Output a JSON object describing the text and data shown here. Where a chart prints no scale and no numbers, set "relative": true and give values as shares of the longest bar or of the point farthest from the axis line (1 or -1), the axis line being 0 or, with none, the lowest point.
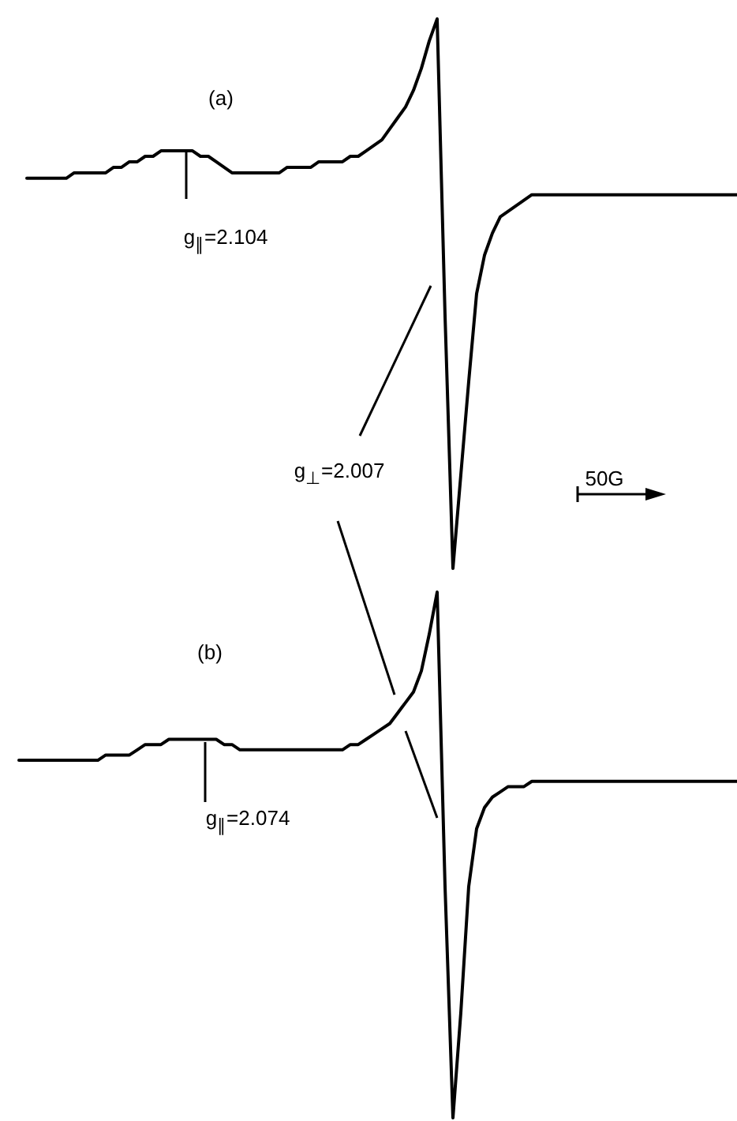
{
  "chart_data": [
    {
      "type": "line",
      "relative": true,
      "line_style": "solid",
      "grid": false,
      "tick_labels": false,
      "categories": [
        null,
        null,
        null,
        null,
        null,
        null,
        null,
        null,
        null,
        null,
        null,
        null,
        null,
        null,
        null,
        null,
        null,
        null,
        null,
        null,
        null,
        null,
        null,
        null,
        null,
        null,
        null,
        null,
        null,
        null,
        null,
        null,
        null,
        null,
        null,
        null,
        null,
        null,
        null,
        null,
        null,
        null,
        null,
        null,
        null,
        null,
        null,
        null,
        null,
        null,
        null,
        null,
        null,
        null,
        null,
        null,
        null,
        null,
        null,
        null,
        null,
        null,
        null,
        null,
        null,
        null,
        null,
        null,
        null,
        null,
        null,
        null,
        null,
        null,
        null,
        null,
        null,
        null,
        null,
        null,
        null,
        null,
        null,
        null,
        null,
        null,
        null,
        null,
        null,
        null,
        null
      ],
      "series": [
        {
          "color": "#000000",
          "values": [
            0.71,
            0.71,
            0.71,
            0.71,
            0.71,
            0.71,
            0.72,
            0.72,
            0.72,
            0.72,
            0.72,
            0.73,
            0.73,
            0.74,
            0.74,
            0.75,
            0.75,
            0.76,
            0.76,
            0.76,
            0.76,
            0.76,
            0.75,
            0.75,
            0.74,
            0.73,
            0.72,
            0.72,
            0.72,
            0.72,
            0.72,
            0.72,
            0.72,
            0.73,
            0.73,
            0.73,
            0.73,
            0.74,
            0.74,
            0.74,
            0.74,
            0.75,
            0.75,
            0.76,
            0.77,
            0.78,
            0.8,
            0.82,
            0.84,
            0.87,
            0.91,
            0.96,
            1,
            0.46,
            0,
            0.17,
            0.34,
            0.5,
            0.57,
            0.61,
            0.64,
            0.65,
            0.66,
            0.67,
            0.68,
            0.68,
            0.68,
            0.68,
            0.68,
            0.68,
            0.68,
            0.68,
            0.68,
            0.68,
            0.68,
            0.68,
            0.68,
            0.68,
            0.68,
            0.68,
            0.68,
            0.68,
            0.68,
            0.68,
            0.68,
            0.68,
            0.68,
            0.68,
            0.68,
            0.68,
            0.68
          ]
        }
      ],
      "annotations": [
        "(a)",
        "g$_{∥}$=2.104",
        "g$_{⊥}$=2.007",
        "50G"
      ]
    },
    {
      "type": "line",
      "relative": true,
      "line_style": "solid",
      "grid": false,
      "tick_labels": false,
      "categories": [
        null,
        null,
        null,
        null,
        null,
        null,
        null,
        null,
        null,
        null,
        null,
        null,
        null,
        null,
        null,
        null,
        null,
        null,
        null,
        null,
        null,
        null,
        null,
        null,
        null,
        null,
        null,
        null,
        null,
        null,
        null,
        null,
        null,
        null,
        null,
        null,
        null,
        null,
        null,
        null,
        null,
        null,
        null,
        null,
        null,
        null,
        null,
        null,
        null,
        null,
        null,
        null,
        null,
        null,
        null,
        null,
        null,
        null,
        null,
        null,
        null,
        null,
        null,
        null,
        null,
        null,
        null,
        null,
        null,
        null,
        null,
        null,
        null,
        null,
        null,
        null,
        null,
        null,
        null,
        null,
        null,
        null,
        null,
        null,
        null,
        null,
        null,
        null,
        null,
        null,
        null,
        null
      ],
      "series": [
        {
          "color": "#000000",
          "values": [
            0.68,
            0.68,
            0.68,
            0.68,
            0.68,
            0.68,
            0.68,
            0.68,
            0.68,
            0.68,
            0.68,
            0.69,
            0.69,
            0.69,
            0.69,
            0.7,
            0.71,
            0.71,
            0.71,
            0.72,
            0.72,
            0.72,
            0.72,
            0.72,
            0.72,
            0.72,
            0.71,
            0.71,
            0.7,
            0.7,
            0.7,
            0.7,
            0.7,
            0.7,
            0.7,
            0.7,
            0.7,
            0.7,
            0.7,
            0.7,
            0.7,
            0.7,
            0.71,
            0.71,
            0.72,
            0.73,
            0.74,
            0.75,
            0.77,
            0.79,
            0.81,
            0.85,
            0.92,
            1,
            0.44,
            0,
            0.2,
            0.44,
            0.55,
            0.59,
            0.61,
            0.62,
            0.63,
            0.63,
            0.63,
            0.64,
            0.64,
            0.64,
            0.64,
            0.64,
            0.64,
            0.64,
            0.64,
            0.64,
            0.64,
            0.64,
            0.64,
            0.64,
            0.64,
            0.64,
            0.64,
            0.64,
            0.64,
            0.64,
            0.64,
            0.64,
            0.64,
            0.64,
            0.64,
            0.64,
            0.64,
            0.64
          ]
        }
      ],
      "annotations": [
        "(b)",
        "g$_{∥}$=2.074"
      ]
    }
  ]
}
